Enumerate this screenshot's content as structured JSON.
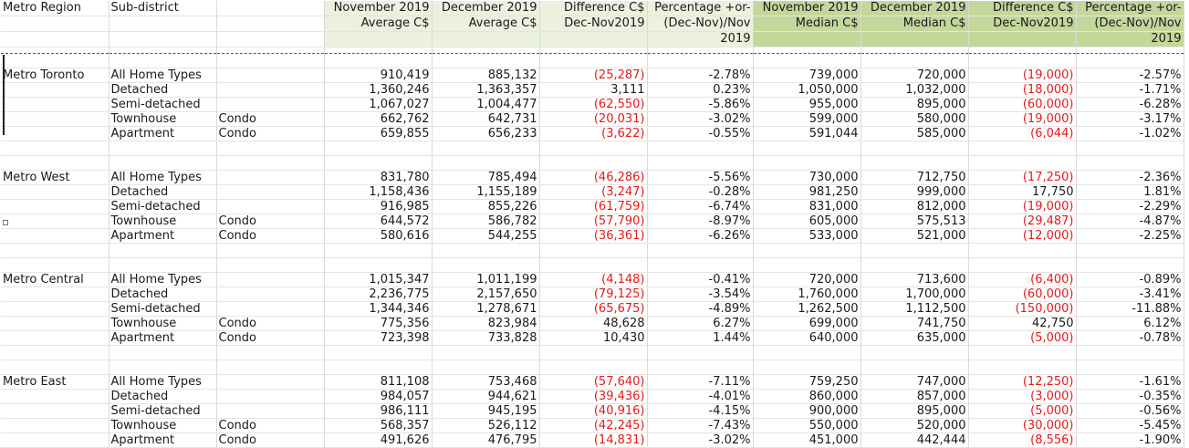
{
  "headers": {
    "region": "Metro Region",
    "subdistrict": "Sub-district",
    "c3": "",
    "nov_avg": [
      "November 2019",
      "Average C$"
    ],
    "dec_avg": [
      "December 2019",
      "Average C$"
    ],
    "diff_avg": [
      "Difference C$",
      "Dec-Nov2019"
    ],
    "pct_avg": [
      "Percentage +or-",
      "(Dec-Nov)/Nov",
      "2019"
    ],
    "nov_med": [
      "November 2019",
      "Median C$"
    ],
    "dec_med": [
      "December 2019",
      "Median C$"
    ],
    "diff_med": [
      "Difference C$",
      "Dec-Nov2019"
    ],
    "pct_med": [
      "Percentage +or-",
      "(Dec-Nov)/Nov",
      "2019"
    ]
  },
  "regions": [
    {
      "name": "Metro Toronto",
      "rows": [
        {
          "type": "All Home Types",
          "sub": "",
          "nov_avg": "910,419",
          "dec_avg": "885,132",
          "diff_avg": "(25,287)",
          "pct_avg": "-2.78%",
          "nov_med": "739,000",
          "dec_med": "720,000",
          "diff_med": "(19,000)",
          "pct_med": "-2.57%"
        },
        {
          "type": "Detached",
          "sub": "",
          "nov_avg": "1,360,246",
          "dec_avg": "1,363,357",
          "diff_avg": "3,111",
          "pct_avg": "0.23%",
          "nov_med": "1,050,000",
          "dec_med": "1,032,000",
          "diff_med": "(18,000)",
          "pct_med": "-1.71%"
        },
        {
          "type": "Semi-detached",
          "sub": "",
          "nov_avg": "1,067,027",
          "dec_avg": "1,004,477",
          "diff_avg": "(62,550)",
          "pct_avg": "-5.86%",
          "nov_med": "955,000",
          "dec_med": "895,000",
          "diff_med": "(60,000)",
          "pct_med": "-6.28%"
        },
        {
          "type": "Townhouse",
          "sub": "Condo",
          "nov_avg": "662,762",
          "dec_avg": "642,731",
          "diff_avg": "(20,031)",
          "pct_avg": "-3.02%",
          "nov_med": "599,000",
          "dec_med": "580,000",
          "diff_med": "(19,000)",
          "pct_med": "-3.17%"
        },
        {
          "type": "Apartment",
          "sub": "Condo",
          "nov_avg": "659,855",
          "dec_avg": "656,233",
          "diff_avg": "(3,622)",
          "pct_avg": "-0.55%",
          "nov_med": "591,044",
          "dec_med": "585,000",
          "diff_med": "(6,044)",
          "pct_med": "-1.02%"
        }
      ]
    },
    {
      "name": "Metro West",
      "rows": [
        {
          "type": "All Home Types",
          "sub": "",
          "nov_avg": "831,780",
          "dec_avg": "785,494",
          "diff_avg": "(46,286)",
          "pct_avg": "-5.56%",
          "nov_med": "730,000",
          "dec_med": "712,750",
          "diff_med": "(17,250)",
          "pct_med": "-2.36%"
        },
        {
          "type": "Detached",
          "sub": "",
          "nov_avg": "1,158,436",
          "dec_avg": "1,155,189",
          "diff_avg": "(3,247)",
          "pct_avg": "-0.28%",
          "nov_med": "981,250",
          "dec_med": "999,000",
          "diff_med": "17,750",
          "pct_med": "1.81%"
        },
        {
          "type": "Semi-detached",
          "sub": "",
          "nov_avg": "916,985",
          "dec_avg": "855,226",
          "diff_avg": "(61,759)",
          "pct_avg": "-6.74%",
          "nov_med": "831,000",
          "dec_med": "812,000",
          "diff_med": "(19,000)",
          "pct_med": "-2.29%"
        },
        {
          "type": "Townhouse",
          "sub": "Condo",
          "nov_avg": "644,572",
          "dec_avg": "586,782",
          "diff_avg": "(57,790)",
          "pct_avg": "-8.97%",
          "nov_med": "605,000",
          "dec_med": "575,513",
          "diff_med": "(29,487)",
          "pct_med": "-4.87%"
        },
        {
          "type": "Apartment",
          "sub": "Condo",
          "nov_avg": "580,616",
          "dec_avg": "544,255",
          "diff_avg": "(36,361)",
          "pct_avg": "-6.26%",
          "nov_med": "533,000",
          "dec_med": "521,000",
          "diff_med": "(12,000)",
          "pct_med": "-2.25%"
        }
      ]
    },
    {
      "name": "Metro Central",
      "rows": [
        {
          "type": "All Home Types",
          "sub": "",
          "nov_avg": "1,015,347",
          "dec_avg": "1,011,199",
          "diff_avg": "(4,148)",
          "pct_avg": "-0.41%",
          "nov_med": "720,000",
          "dec_med": "713,600",
          "diff_med": "(6,400)",
          "pct_med": "-0.89%"
        },
        {
          "type": "Detached",
          "sub": "",
          "nov_avg": "2,236,775",
          "dec_avg": "2,157,650",
          "diff_avg": "(79,125)",
          "pct_avg": "-3.54%",
          "nov_med": "1,760,000",
          "dec_med": "1,700,000",
          "diff_med": "(60,000)",
          "pct_med": "-3.41%"
        },
        {
          "type": "Semi-detached",
          "sub": "",
          "nov_avg": "1,344,346",
          "dec_avg": "1,278,671",
          "diff_avg": "(65,675)",
          "pct_avg": "-4.89%",
          "nov_med": "1,262,500",
          "dec_med": "1,112,500",
          "diff_med": "(150,000)",
          "pct_med": "-11.88%"
        },
        {
          "type": "Townhouse",
          "sub": "Condo",
          "nov_avg": "775,356",
          "dec_avg": "823,984",
          "diff_avg": "48,628",
          "pct_avg": "6.27%",
          "nov_med": "699,000",
          "dec_med": "741,750",
          "diff_med": "42,750",
          "pct_med": "6.12%"
        },
        {
          "type": "Apartment",
          "sub": "Condo",
          "nov_avg": "723,398",
          "dec_avg": "733,828",
          "diff_avg": "10,430",
          "pct_avg": "1.44%",
          "nov_med": "640,000",
          "dec_med": "635,000",
          "diff_med": "(5,000)",
          "pct_med": "-0.78%"
        }
      ]
    },
    {
      "name": "Metro East",
      "rows": [
        {
          "type": "All Home Types",
          "sub": "",
          "nov_avg": "811,108",
          "dec_avg": "753,468",
          "diff_avg": "(57,640)",
          "pct_avg": "-7.11%",
          "nov_med": "759,250",
          "dec_med": "747,000",
          "diff_med": "(12,250)",
          "pct_med": "-1.61%"
        },
        {
          "type": "Detached",
          "sub": "",
          "nov_avg": "984,057",
          "dec_avg": "944,621",
          "diff_avg": "(39,436)",
          "pct_avg": "-4.01%",
          "nov_med": "860,000",
          "dec_med": "857,000",
          "diff_med": "(3,000)",
          "pct_med": "-0.35%"
        },
        {
          "type": "Semi-detached",
          "sub": "",
          "nov_avg": "986,111",
          "dec_avg": "945,195",
          "diff_avg": "(40,916)",
          "pct_avg": "-4.15%",
          "nov_med": "900,000",
          "dec_med": "895,000",
          "diff_med": "(5,000)",
          "pct_med": "-0.56%"
        },
        {
          "type": "Townhouse",
          "sub": "Condo",
          "nov_avg": "568,357",
          "dec_avg": "526,112",
          "diff_avg": "(42,245)",
          "pct_avg": "-7.43%",
          "nov_med": "550,000",
          "dec_med": "520,000",
          "diff_med": "(30,000)",
          "pct_med": "-5.45%"
        },
        {
          "type": "Apartment",
          "sub": "Condo",
          "nov_avg": "491,626",
          "dec_avg": "476,795",
          "diff_avg": "(14,831)",
          "pct_avg": "-3.02%",
          "nov_med": "451,000",
          "dec_med": "442,444",
          "diff_med": "(8,556)",
          "pct_med": "-1.90%"
        }
      ]
    }
  ],
  "colors": {
    "negative": "#e31a1c",
    "avg_header_fill": "#ebf1de",
    "median_header_fill": "#c4d79b",
    "gridline": "#d9d9d9"
  }
}
